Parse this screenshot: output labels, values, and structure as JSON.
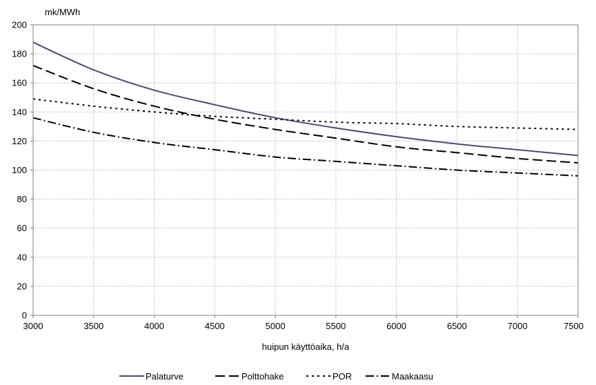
{
  "chart_data": {
    "type": "line",
    "title": "",
    "ylabel": "mk/MWh",
    "xlabel": "huipun käyttöaika, h/a",
    "xlim": [
      3000,
      7500
    ],
    "ylim": [
      0,
      200
    ],
    "x_ticks": [
      3000,
      3500,
      4000,
      4500,
      5000,
      5500,
      6000,
      6500,
      7000,
      7500
    ],
    "y_ticks": [
      0,
      20,
      40,
      60,
      80,
      100,
      120,
      140,
      160,
      180,
      200
    ],
    "grid": true,
    "legend_position": "bottom",
    "x": [
      3000,
      3500,
      4000,
      4500,
      5000,
      5500,
      6000,
      6500,
      7000,
      7500
    ],
    "series": [
      {
        "name": "Palaturve",
        "style": "solid",
        "color": "#4a4a7c",
        "values": [
          188,
          169,
          155,
          145,
          136,
          129,
          123,
          118,
          114,
          110
        ]
      },
      {
        "name": "Polttohake",
        "style": "dash",
        "color": "#000000",
        "values": [
          172,
          156,
          144,
          135,
          128,
          122,
          116,
          112,
          108,
          105
        ]
      },
      {
        "name": "POR",
        "style": "dot",
        "color": "#000000",
        "values": [
          149,
          144,
          140,
          137,
          135,
          133,
          132,
          130,
          129,
          128
        ]
      },
      {
        "name": "Maakaasu",
        "style": "dashdot",
        "color": "#000000",
        "values": [
          136,
          126,
          119,
          114,
          109,
          106,
          103,
          100,
          98,
          96
        ]
      }
    ]
  }
}
